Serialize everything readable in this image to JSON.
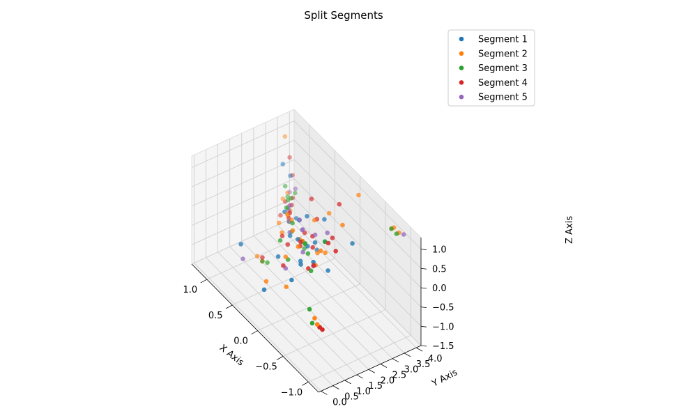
{
  "chart_data": {
    "type": "scatter",
    "projection": "3d",
    "title": "Split Segments",
    "xlabel": "X Axis",
    "ylabel": "Y Axis",
    "zlabel": "Z Axis",
    "xlim": [
      -1.2,
      1.3
    ],
    "ylim": [
      -0.1,
      4.2
    ],
    "zlim": [
      -1.5,
      1.3
    ],
    "xticks": [
      "−1.0",
      "−0.5",
      "0.0",
      "0.5",
      "1.0"
    ],
    "xtick_values": [
      -1.0,
      -0.5,
      0.0,
      0.5,
      1.0
    ],
    "yticks": [
      "0.0",
      "0.5",
      "1.0",
      "1.5",
      "2.0",
      "2.5",
      "3.0",
      "3.5",
      "4.0"
    ],
    "ytick_values": [
      0.0,
      0.5,
      1.0,
      1.5,
      2.0,
      2.5,
      3.0,
      3.5,
      4.0
    ],
    "zticks": [
      "−1.5",
      "−1.0",
      "−0.5",
      "0.0",
      "0.5",
      "1.0"
    ],
    "ztick_values": [
      -1.5,
      -1.0,
      -0.5,
      0.0,
      0.5,
      1.0
    ],
    "grid": true,
    "legend_position": "top-right",
    "series": [
      {
        "name": "Segment 1",
        "color": "#1f77b4",
        "points": [
          [
            0.1,
            1.8,
            0.2
          ],
          [
            0.0,
            2.0,
            0.1
          ],
          [
            -0.1,
            2.1,
            0.3
          ],
          [
            0.2,
            2.2,
            -0.1
          ],
          [
            0.3,
            1.9,
            0.0
          ],
          [
            -0.2,
            2.3,
            0.4
          ],
          [
            0.0,
            1.7,
            -0.2
          ],
          [
            0.4,
            2.5,
            0.1
          ],
          [
            -0.3,
            1.6,
            0.2
          ],
          [
            0.1,
            2.6,
            -0.3
          ],
          [
            0.2,
            2.4,
            0.5
          ],
          [
            -0.1,
            1.5,
            -0.1
          ],
          [
            0.5,
            2.1,
            0.3
          ],
          [
            -0.4,
            2.0,
            0.0
          ],
          [
            0.3,
            1.4,
            -0.4
          ],
          [
            0.6,
            2.8,
            -0.2
          ],
          [
            0.8,
            0.9,
            -0.6
          ],
          [
            0.2,
            0.6,
            -0.9
          ],
          [
            1.1,
            3.3,
            0.4
          ],
          [
            -0.6,
            2.6,
            0.8
          ],
          [
            0.0,
            2.7,
            0.6
          ],
          [
            1.0,
            3.4,
            0.2
          ],
          [
            -0.2,
            0.9,
            -0.2
          ]
        ]
      },
      {
        "name": "Segment 2",
        "color": "#ff7f0e",
        "points": [
          [
            -0.9,
            3.6,
            1.3
          ],
          [
            -0.9,
            3.7,
            1.3
          ],
          [
            -1.0,
            3.7,
            1.3
          ],
          [
            1.0,
            3.3,
            -0.8
          ],
          [
            1.0,
            3.4,
            -0.7
          ],
          [
            1.1,
            3.3,
            -0.5
          ],
          [
            -0.8,
            0.8,
            -0.6
          ],
          [
            -0.7,
            0.8,
            -0.5
          ],
          [
            -0.8,
            0.7,
            -0.5
          ],
          [
            0.8,
            1.8,
            -1.3
          ],
          [
            0.9,
            1.8,
            -1.3
          ],
          [
            0.1,
            2.0,
            0.1
          ],
          [
            0.2,
            1.8,
            0.3
          ],
          [
            -0.1,
            2.2,
            0.0
          ],
          [
            0.3,
            2.3,
            -0.2
          ],
          [
            0.0,
            1.6,
            0.2
          ],
          [
            0.4,
            2.0,
            0.4
          ],
          [
            -0.2,
            1.9,
            -0.1
          ],
          [
            0.5,
            2.4,
            0.0
          ],
          [
            0.2,
            1.5,
            -0.3
          ],
          [
            -0.3,
            2.1,
            0.3
          ],
          [
            0.1,
            2.5,
            0.5
          ],
          [
            0.6,
            2.2,
            -0.4
          ],
          [
            -0.5,
            2.4,
            1.2
          ],
          [
            -0.3,
            3.5,
            1.4
          ],
          [
            1.2,
            3.6,
            0.9
          ],
          [
            0.0,
            1.1,
            -0.7
          ],
          [
            0.3,
            0.9,
            -0.9
          ],
          [
            0.8,
            2.5,
            -0.5
          ],
          [
            -0.4,
            1.7,
            0.6
          ],
          [
            1.1,
            3.5,
            -0.4
          ],
          [
            0.0,
            2.9,
            0.7
          ]
        ]
      },
      {
        "name": "Segment 3",
        "color": "#2ca02c",
        "points": [
          [
            -0.9,
            3.6,
            1.3
          ],
          [
            -1.0,
            3.6,
            1.3
          ],
          [
            0.8,
            1.8,
            -1.3
          ],
          [
            0.7,
            1.8,
            -1.2
          ],
          [
            -0.8,
            0.8,
            -0.6
          ],
          [
            -0.7,
            0.7,
            -0.6
          ],
          [
            -0.6,
            0.8,
            -0.4
          ],
          [
            1.0,
            3.3,
            -0.6
          ],
          [
            1.1,
            3.5,
            -0.5
          ],
          [
            1.0,
            3.6,
            -0.3
          ],
          [
            1.0,
            3.3,
            -0.4
          ],
          [
            1.1,
            3.4,
            -0.2
          ],
          [
            0.1,
            2.1,
            0.0
          ],
          [
            0.0,
            1.9,
            0.2
          ],
          [
            0.2,
            2.2,
            -0.1
          ],
          [
            -0.1,
            1.8,
            0.1
          ],
          [
            0.3,
            2.0,
            0.3
          ],
          [
            0.4,
            1.7,
            -0.2
          ],
          [
            0.5,
            2.4,
            -0.3
          ],
          [
            0.6,
            2.5,
            -0.2
          ],
          [
            0.7,
            2.6,
            0.0
          ],
          [
            -0.2,
            2.3,
            0.4
          ],
          [
            0.2,
            1.6,
            -0.4
          ],
          [
            0.8,
            3.0,
            0.0
          ],
          [
            0.3,
            2.5,
            -0.5
          ],
          [
            -0.3,
            1.5,
            0.0
          ]
        ]
      },
      {
        "name": "Segment 4",
        "color": "#d62728",
        "points": [
          [
            0.8,
            1.8,
            -1.2
          ],
          [
            -0.8,
            0.8,
            -0.6
          ],
          [
            -0.9,
            0.7,
            -0.5
          ],
          [
            1.1,
            3.2,
            -0.9
          ],
          [
            1.1,
            3.4,
            -0.6
          ],
          [
            1.0,
            3.5,
            -0.4
          ],
          [
            1.2,
            3.8,
            0.3
          ],
          [
            1.1,
            3.7,
            0.0
          ],
          [
            -0.5,
            1.8,
            0.9
          ],
          [
            -0.6,
            1.9,
            0.8
          ],
          [
            -0.2,
            2.9,
            1.2
          ],
          [
            0.0,
            2.2,
            0.3
          ],
          [
            0.1,
            1.9,
            0.0
          ],
          [
            -0.1,
            2.0,
            0.2
          ],
          [
            0.2,
            2.3,
            0.1
          ],
          [
            0.3,
            1.8,
            -0.2
          ],
          [
            0.4,
            2.1,
            0.4
          ],
          [
            -0.2,
            1.6,
            -0.1
          ],
          [
            0.1,
            2.6,
            0.5
          ],
          [
            0.5,
            2.0,
            -0.3
          ],
          [
            -0.3,
            2.4,
            0.6
          ],
          [
            0.0,
            1.7,
            0.3
          ],
          [
            0.6,
            2.6,
            0.2
          ],
          [
            0.3,
            2.8,
            0.7
          ],
          [
            -0.4,
            1.4,
            0.3
          ],
          [
            0.7,
            2.7,
            -0.3
          ],
          [
            0.2,
            1.4,
            -0.5
          ]
        ]
      },
      {
        "name": "Segment 5",
        "color": "#9467bd",
        "points": [
          [
            -1.0,
            3.9,
            1.2
          ],
          [
            0.9,
            3.4,
            0.0
          ],
          [
            1.2,
            3.8,
            -0.6
          ],
          [
            0.1,
            2.0,
            0.4
          ],
          [
            0.2,
            2.2,
            0.2
          ],
          [
            -0.1,
            2.1,
            0.5
          ],
          [
            0.3,
            2.3,
            0.3
          ],
          [
            0.0,
            1.8,
            0.0
          ],
          [
            -0.3,
            1.6,
            0.1
          ],
          [
            0.6,
            2.5,
            -0.2
          ],
          [
            0.7,
            2.7,
            -0.1
          ],
          [
            0.2,
            1.5,
            -0.6
          ],
          [
            0.9,
            1.2,
            -1.2
          ],
          [
            -0.2,
            2.4,
            0.6
          ],
          [
            0.4,
            2.1,
            -0.1
          ],
          [
            0.5,
            2.3,
            0.4
          ]
        ]
      }
    ]
  }
}
